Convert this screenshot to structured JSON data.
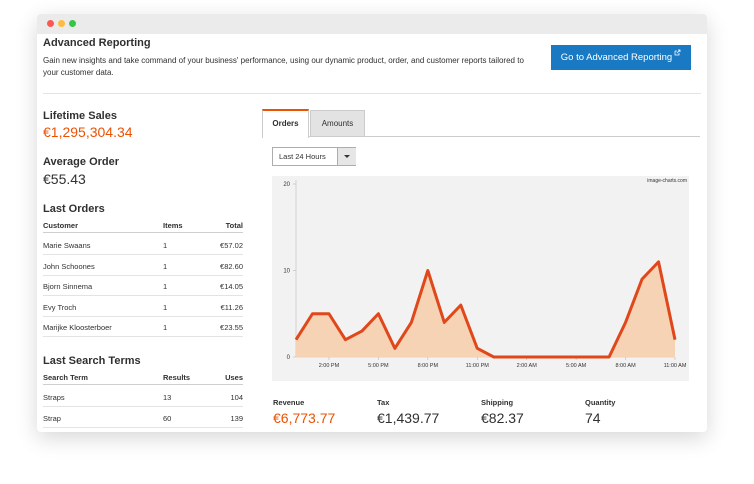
{
  "header": {
    "title": "Advanced Reporting",
    "description": "Gain new insights and take command of your business' performance, using our dynamic product, order, and customer reports tailored to your customer data.",
    "button": "Go to Advanced Reporting"
  },
  "lifetime_sales": {
    "label": "Lifetime Sales",
    "value": "€1,295,304.34"
  },
  "average_order": {
    "label": "Average Order",
    "value": "€55.43"
  },
  "last_orders": {
    "title": "Last Orders",
    "columns": [
      "Customer",
      "Items",
      "Total"
    ],
    "rows": [
      [
        "Marie Swaans",
        "1",
        "€57.02"
      ],
      [
        "John Schoones",
        "1",
        "€82.60"
      ],
      [
        "Bjorn Sinnema",
        "1",
        "€14.05"
      ],
      [
        "Evy Troch",
        "1",
        "€11.26"
      ],
      [
        "Marijke Kloosterboer",
        "1",
        "€23.55"
      ]
    ]
  },
  "last_search_terms": {
    "title": "Last Search Terms",
    "columns": [
      "Search Term",
      "Results",
      "Uses"
    ],
    "rows": [
      [
        "Straps",
        "13",
        "104"
      ],
      [
        "Strap",
        "60",
        "139"
      ]
    ]
  },
  "tabs": [
    "Orders",
    "Amounts"
  ],
  "period": "Last 24 Hours",
  "chart_data": {
    "type": "area",
    "watermark": "image-charts.com",
    "x": [
      0,
      1,
      2,
      3,
      4,
      5,
      6,
      7,
      8,
      9,
      10,
      11,
      12,
      13,
      14,
      15,
      16,
      17,
      18,
      19,
      20,
      21,
      22,
      23
    ],
    "values": [
      2,
      5,
      5,
      2,
      3,
      5,
      1,
      4,
      10,
      4,
      6,
      1,
      0,
      0,
      0,
      0,
      0,
      0,
      0,
      0,
      4,
      9,
      11,
      2
    ],
    "color": "#e0471b",
    "fill_color": "#f6d3b4",
    "xlim": [
      0,
      23
    ],
    "xticks": [
      {
        "value": 2,
        "label": "2:00 PM"
      },
      {
        "value": 5,
        "label": "5:00 PM"
      },
      {
        "value": 8,
        "label": "8:00 PM"
      },
      {
        "value": 11,
        "label": "11:00 PM"
      },
      {
        "value": 14,
        "label": "2:00 AM"
      },
      {
        "value": 17,
        "label": "5:00 AM"
      },
      {
        "value": 20,
        "label": "8:00 AM"
      },
      {
        "value": 23,
        "label": "11:00 AM"
      }
    ],
    "ylim": [
      0,
      20
    ],
    "yticks": [
      0,
      10,
      20
    ]
  },
  "totals": [
    {
      "label": "Revenue",
      "value": "€6,773.77"
    },
    {
      "label": "Tax",
      "value": "€1,439.77"
    },
    {
      "label": "Shipping",
      "value": "€82.37"
    },
    {
      "label": "Quantity",
      "value": "74"
    }
  ]
}
